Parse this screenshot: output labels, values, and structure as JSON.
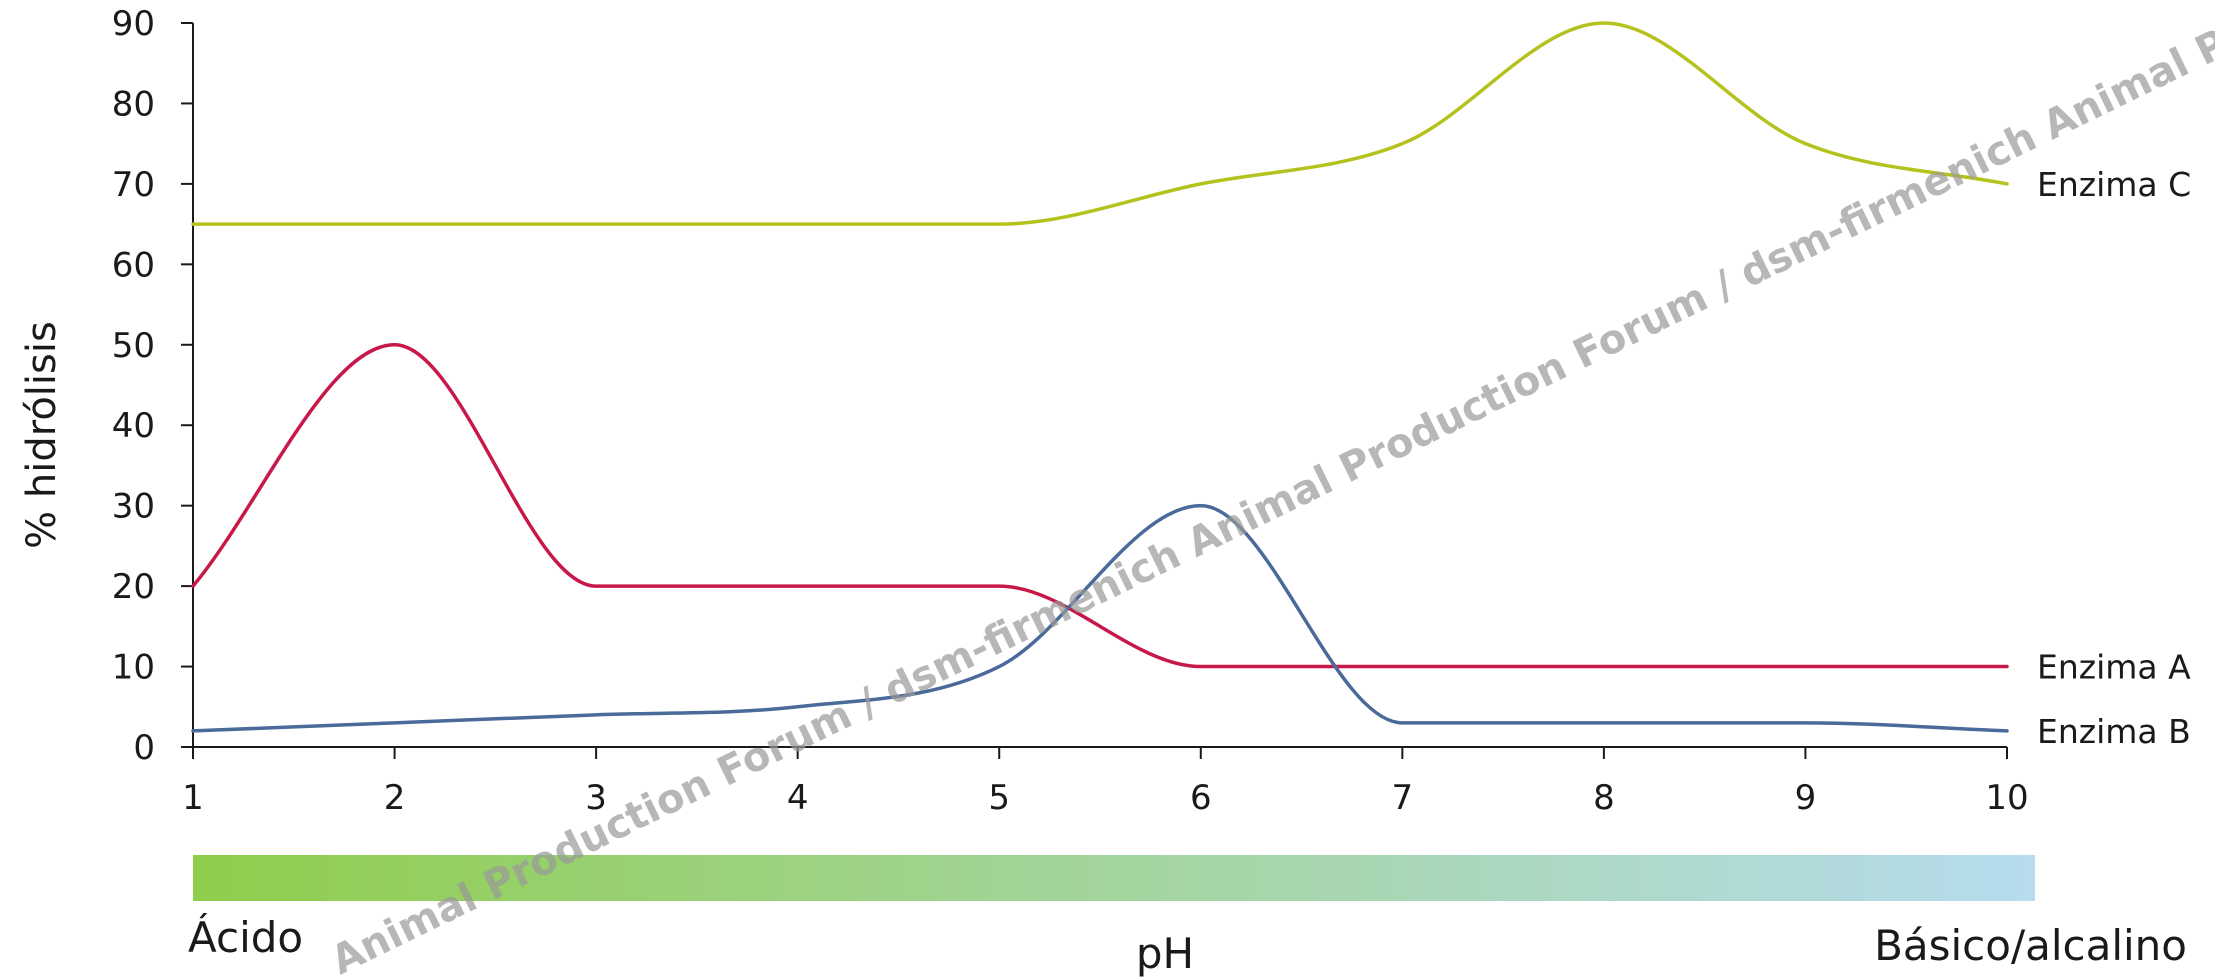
{
  "chart_data": {
    "type": "line",
    "x": [
      1,
      2,
      3,
      4,
      5,
      6,
      7,
      8,
      9,
      10
    ],
    "xlabel": "pH",
    "ylabel": "% hidrólisis",
    "xlim": [
      1,
      10
    ],
    "ylim": [
      0,
      90
    ],
    "xticks": [
      "1",
      "2",
      "3",
      "4",
      "5",
      "6",
      "7",
      "8",
      "9",
      "10"
    ],
    "yticks": [
      "0",
      "10",
      "20",
      "30",
      "40",
      "50",
      "60",
      "70",
      "80",
      "90"
    ],
    "grid": false,
    "series": [
      {
        "name": "Enzima A",
        "color": "#c8184a",
        "values": [
          20,
          50,
          20,
          20,
          20,
          10,
          10,
          10,
          10,
          10
        ]
      },
      {
        "name": "Enzima B",
        "color": "#4a6a9a",
        "values": [
          2,
          3,
          4,
          5,
          10,
          30,
          3,
          3,
          3,
          2
        ]
      },
      {
        "name": "Enzima C",
        "color": "#b5c21e",
        "values": [
          65,
          65,
          65,
          65,
          65,
          70,
          75,
          90,
          75,
          70
        ]
      }
    ],
    "ph_scale": {
      "left_label": "Ácido",
      "right_label": "Básico/alcalino",
      "color_start": "#8fcd4c",
      "color_end": "#b6dcee"
    },
    "watermark": "Animal Production Forum / dsm-firmenich Animal Production Forum / dsm-firmenich Animal Production Forum / dsm-firmenich"
  }
}
